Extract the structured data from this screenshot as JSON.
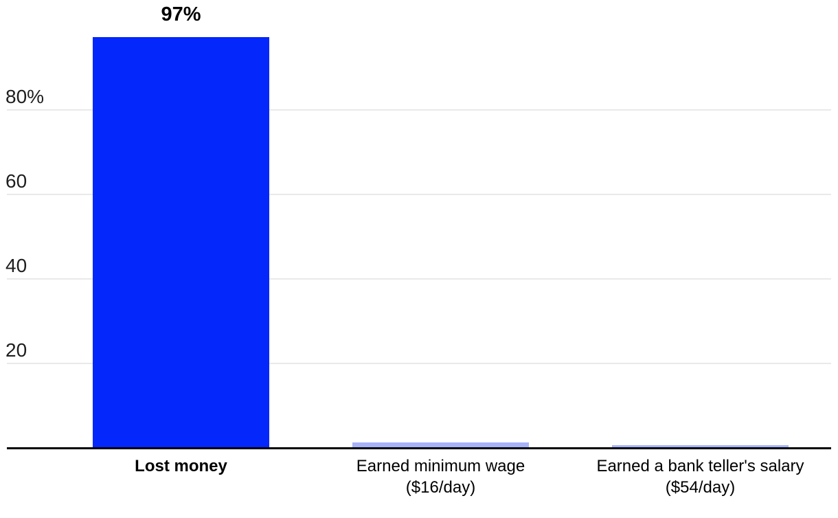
{
  "chart_data": {
    "type": "bar",
    "title": "",
    "xlabel": "",
    "ylabel": "",
    "ylim": [
      0,
      100
    ],
    "grid": "horizontal-gridlines",
    "legend": "none",
    "categories": [
      "Lost money",
      "Earned minimum wage ($16/day)",
      "Earned a bank teller's salary ($54/day)"
    ],
    "category_lines": [
      [
        "Lost money"
      ],
      [
        "Earned minimum wage",
        "($16/day)"
      ],
      [
        "Earned a bank teller's salary",
        "($54/day)"
      ]
    ],
    "values": [
      97,
      1.1,
      0.5
    ],
    "bar_value_labels": [
      "97%",
      "",
      ""
    ],
    "bar_colors": [
      "#0427fb",
      "#a7b2f7",
      "#a7b2f7"
    ],
    "emphasized_category_index": 0,
    "y_ticks": [
      {
        "value": 80,
        "label": "80%"
      },
      {
        "value": 60,
        "label": "60"
      },
      {
        "value": 40,
        "label": "40"
      },
      {
        "value": 20,
        "label": "20"
      }
    ]
  },
  "colors": {
    "background": "#ffffff",
    "bar_primary": "#0427fb",
    "bar_secondary": "#a7b2f7",
    "gridline": "#e9e9e9",
    "axis_line": "#000000",
    "tick_text": "#1e1e1e",
    "category_text": "#000000",
    "value_label_text": "#000000"
  }
}
